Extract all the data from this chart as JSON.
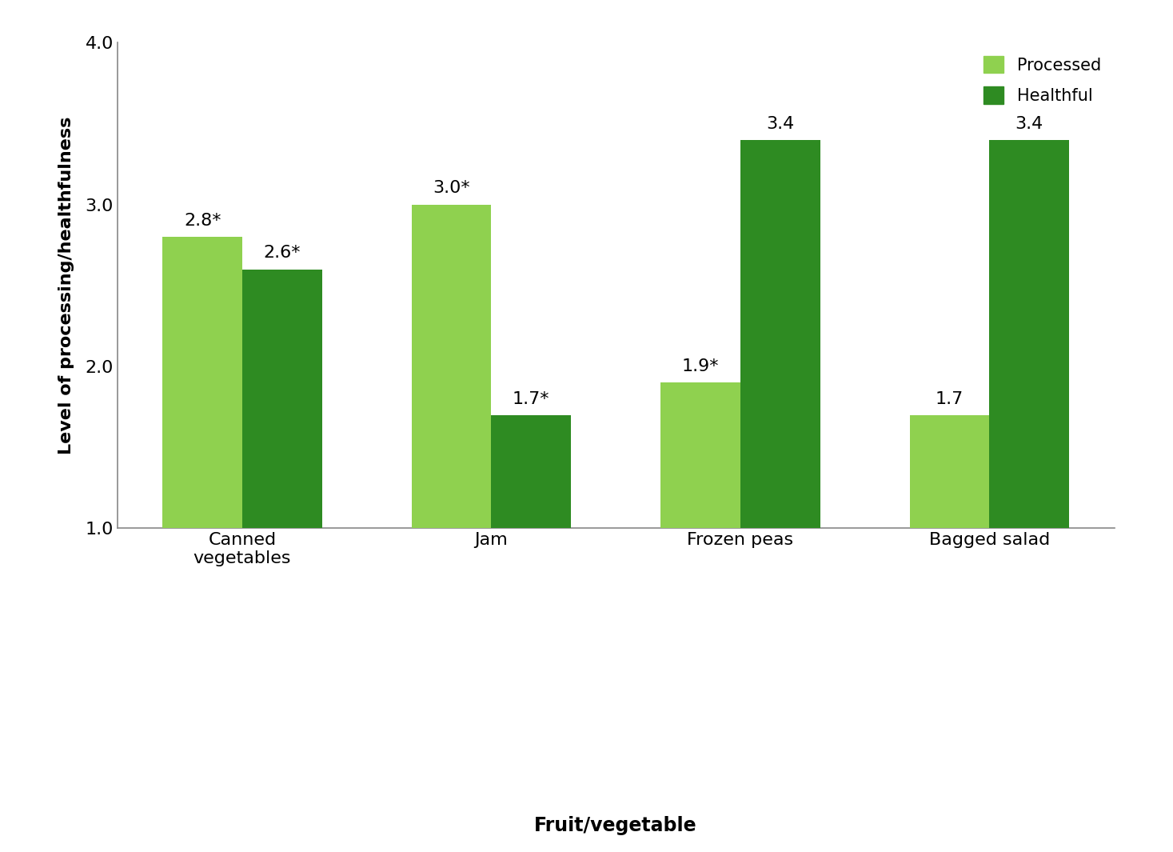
{
  "categories": [
    "Canned\nvegetables",
    "Jam",
    "Frozen peas",
    "Bagged salad"
  ],
  "processed_values": [
    2.8,
    3.0,
    1.9,
    1.7
  ],
  "healthful_values": [
    2.6,
    1.7,
    3.4,
    3.4
  ],
  "processed_labels": [
    "2.8*",
    "3.0*",
    "1.9*",
    "1.7"
  ],
  "healthful_labels": [
    "2.6*",
    "1.7*",
    "3.4",
    "3.4"
  ],
  "processed_color": "#8FD14F",
  "healthful_color": "#2E8B22",
  "ylim": [
    1.0,
    4.0
  ],
  "ybase": 1.0,
  "yticks": [
    1.0,
    2.0,
    3.0,
    4.0
  ],
  "ylabel": "Level of processing/healthfulness",
  "xlabel": "Fruit/vegetable",
  "legend_labels": [
    "Processed",
    "Healthful"
  ],
  "label_fontsize": 16,
  "tick_fontsize": 16,
  "bar_width": 0.32,
  "legend_fontsize": 15,
  "annot_fontsize": 16
}
